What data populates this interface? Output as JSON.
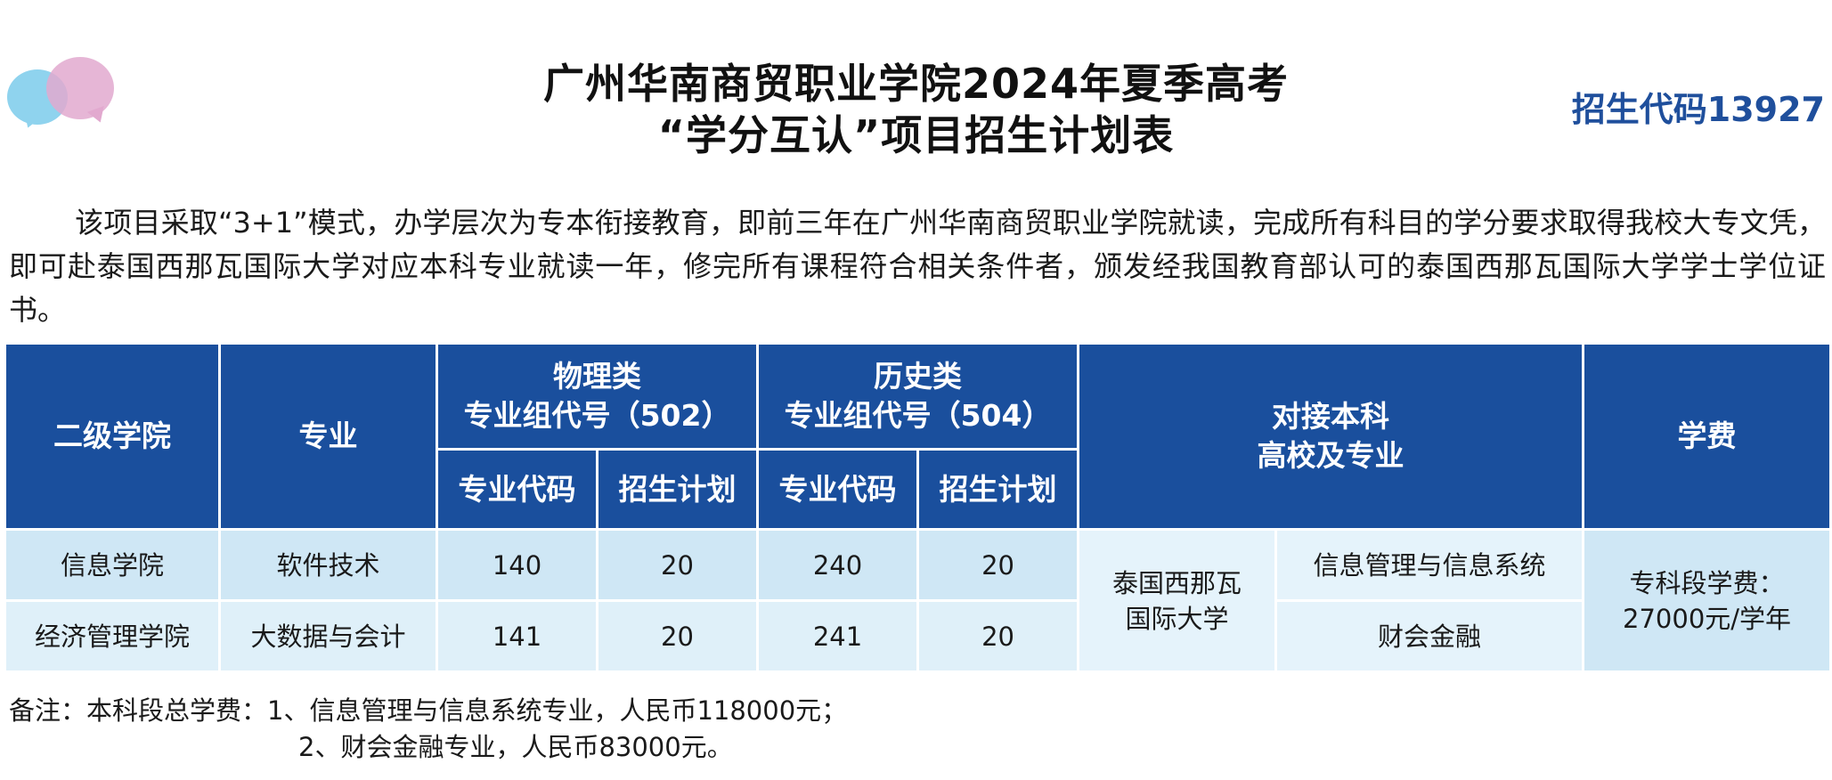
{
  "title": {
    "line1": "广州华南商贸职业学院2024年夏季高考",
    "line2": "“学分互认”项目招生计划表",
    "code": "招生代码13927"
  },
  "intro": "该项目采取“3+1”模式，办学层次为专本衔接教育，即前三年在广州华南商贸职业学院就读，完成所有科目的学分要求取得我校大专文凭，即可赴泰国西那瓦国际大学对应本科专业就读一年，修完所有课程符合相关条件者，颁发经我国教育部认可的泰国西那瓦国际大学学士学位证书。",
  "table": {
    "headers": {
      "college": "二级学院",
      "major": "专业",
      "physics_l1": "物理类",
      "physics_l2": "专业组代号（502）",
      "history_l1": "历史类",
      "history_l2": "专业组代号（504）",
      "partner_l1": "对接本科",
      "partner_l2": "高校及专业",
      "fee": "学费",
      "major_code": "专业代码",
      "enroll_plan": "招生计划"
    },
    "rows": [
      {
        "college": "信息学院",
        "major": "软件技术",
        "phys_code": "140",
        "phys_plan": "20",
        "hist_code": "240",
        "hist_plan": "20",
        "partner_major": "信息管理与信息系统"
      },
      {
        "college": "经济管理学院",
        "major": "大数据与会计",
        "phys_code": "141",
        "phys_plan": "20",
        "hist_code": "241",
        "hist_plan": "20",
        "partner_major": "财会金融"
      }
    ],
    "partner_school_l1": "泰国西那瓦",
    "partner_school_l2": "国际大学",
    "fee_l1": "专科段学费：",
    "fee_l2": "27000元/学年"
  },
  "note": {
    "line1": "备注：本科段总学费：1、信息管理与信息系统专业，人民币118000元；",
    "line2": "2、财会金融专业，人民币83000元。"
  },
  "colors": {
    "header_blue": "#1a4f9d",
    "code_blue": "#1f4f9c",
    "cell_light_blue": "#cfe7f5"
  }
}
